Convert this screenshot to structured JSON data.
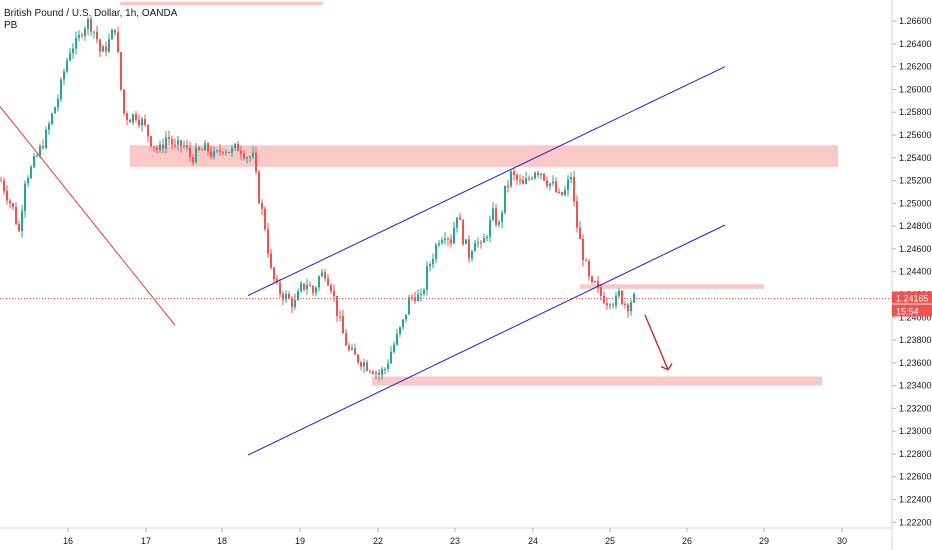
{
  "header": {
    "symbol": "British Pound / U.S. Dollar, 1h, OANDA",
    "indicator": "PB"
  },
  "price_tag": {
    "price": "1.24165",
    "countdown": "15:54"
  },
  "colors": {
    "up": "#26a69a",
    "down": "#ef5350",
    "channel": "#2020d0",
    "zone": "rgba(239,83,80,0.32)",
    "trend": "#e53935",
    "arrow": "#c62828",
    "tag": "#ef5350"
  },
  "chart_data": {
    "type": "candlestick",
    "x_ticks": [
      "16",
      "17",
      "18",
      "19",
      "22",
      "23",
      "24",
      "25",
      "26",
      "29",
      "30"
    ],
    "y_ticks": [
      "1.26600",
      "1.26400",
      "1.26200",
      "1.26000",
      "1.25800",
      "1.25600",
      "1.25400",
      "1.25200",
      "1.25000",
      "1.24800",
      "1.24600",
      "1.24400",
      "1.24200",
      "1.24000",
      "1.23800",
      "1.23600",
      "1.23400",
      "1.23200",
      "1.23000",
      "1.22800",
      "1.22600",
      "1.22400",
      "1.22200"
    ],
    "ylim": [
      1.2215,
      1.2675
    ],
    "current_price": 1.24165,
    "price_path": [
      [
        0,
        1.252
      ],
      [
        12,
        1.2495
      ],
      [
        18,
        1.2475
      ],
      [
        24,
        1.2522
      ],
      [
        30,
        1.253
      ],
      [
        38,
        1.2545
      ],
      [
        45,
        1.256
      ],
      [
        52,
        1.258
      ],
      [
        58,
        1.2595
      ],
      [
        64,
        1.262
      ],
      [
        70,
        1.2638
      ],
      [
        76,
        1.264
      ],
      [
        82,
        1.2655
      ],
      [
        88,
        1.266
      ],
      [
        95,
        1.2648
      ],
      [
        100,
        1.263
      ],
      [
        108,
        1.2642
      ],
      [
        114,
        1.2655
      ],
      [
        118,
        1.262
      ],
      [
        122,
        1.258
      ],
      [
        128,
        1.2575
      ],
      [
        135,
        1.2578
      ],
      [
        142,
        1.257
      ],
      [
        150,
        1.2555
      ],
      [
        158,
        1.2545
      ],
      [
        166,
        1.256
      ],
      [
        174,
        1.2548
      ],
      [
        182,
        1.2552
      ],
      [
        190,
        1.254
      ],
      [
        198,
        1.2545
      ],
      [
        206,
        1.2548
      ],
      [
        214,
        1.254
      ],
      [
        222,
        1.255
      ],
      [
        230,
        1.2545
      ],
      [
        238,
        1.255
      ],
      [
        246,
        1.2542
      ],
      [
        252,
        1.254
      ],
      [
        258,
        1.2505
      ],
      [
        264,
        1.248
      ],
      [
        270,
        1.244
      ],
      [
        276,
        1.2425
      ],
      [
        282,
        1.242
      ],
      [
        288,
        1.2415
      ],
      [
        294,
        1.2412
      ],
      [
        300,
        1.2425
      ],
      [
        306,
        1.243
      ],
      [
        312,
        1.2422
      ],
      [
        318,
        1.2435
      ],
      [
        324,
        1.244
      ],
      [
        330,
        1.2428
      ],
      [
        336,
        1.2405
      ],
      [
        342,
        1.2385
      ],
      [
        348,
        1.237
      ],
      [
        354,
        1.2365
      ],
      [
        360,
        1.2362
      ],
      [
        366,
        1.2358
      ],
      [
        372,
        1.2355
      ],
      [
        378,
        1.235
      ],
      [
        384,
        1.2355
      ],
      [
        390,
        1.237
      ],
      [
        396,
        1.2382
      ],
      [
        402,
        1.2395
      ],
      [
        408,
        1.2415
      ],
      [
        414,
        1.242
      ],
      [
        420,
        1.2415
      ],
      [
        426,
        1.244
      ],
      [
        432,
        1.2455
      ],
      [
        438,
        1.247
      ],
      [
        444,
        1.2475
      ],
      [
        450,
        1.2468
      ],
      [
        456,
        1.2492
      ],
      [
        462,
        1.247
      ],
      [
        468,
        1.2455
      ],
      [
        474,
        1.247
      ],
      [
        480,
        1.246
      ],
      [
        486,
        1.2475
      ],
      [
        492,
        1.249
      ],
      [
        498,
        1.248
      ],
      [
        504,
        1.251
      ],
      [
        510,
        1.2525
      ],
      [
        516,
        1.252
      ],
      [
        522,
        1.2515
      ],
      [
        528,
        1.2522
      ],
      [
        534,
        1.253
      ],
      [
        540,
        1.2528
      ],
      [
        546,
        1.252
      ],
      [
        552,
        1.2515
      ],
      [
        558,
        1.2505
      ],
      [
        564,
        1.251
      ],
      [
        570,
        1.2525
      ],
      [
        574,
        1.249
      ],
      [
        578,
        1.247
      ],
      [
        582,
        1.2455
      ],
      [
        586,
        1.244
      ],
      [
        590,
        1.2425
      ],
      [
        594,
        1.2428
      ],
      [
        598,
        1.242
      ],
      [
        602,
        1.2418
      ],
      [
        606,
        1.2415
      ],
      [
        610,
        1.2418
      ],
      [
        614,
        1.2412
      ],
      [
        618,
        1.242
      ],
      [
        622,
        1.2415
      ],
      [
        626,
        1.241
      ],
      [
        630,
        1.2415
      ],
      [
        634,
        1.24165
      ]
    ],
    "zones": [
      {
        "x0": 130,
        "x1": 838,
        "p_top": 1.2551,
        "p_bot": 1.2532
      },
      {
        "x0": 580,
        "x1": 764,
        "p_top": 1.2429,
        "p_bot": 1.2425
      },
      {
        "x0": 372,
        "x1": 822,
        "p_top": 1.2348,
        "p_bot": 1.234
      },
      {
        "x0": 120,
        "x1": 323,
        "p_top": 1.2677,
        "p_bot": 1.2674
      }
    ],
    "channel_lines": [
      {
        "x0": 248,
        "p0": 1.2419,
        "x1": 725,
        "p1": 1.262
      },
      {
        "x0": 248,
        "p0": 1.2279,
        "x1": 725,
        "p1": 1.2481
      }
    ],
    "trend_line": {
      "x0": 0,
      "p0": 1.2585,
      "x1": 175,
      "p1": 1.2393
    },
    "arrow": {
      "x0": 645,
      "p0": 1.2402,
      "x1": 668,
      "p1": 1.2354
    }
  }
}
